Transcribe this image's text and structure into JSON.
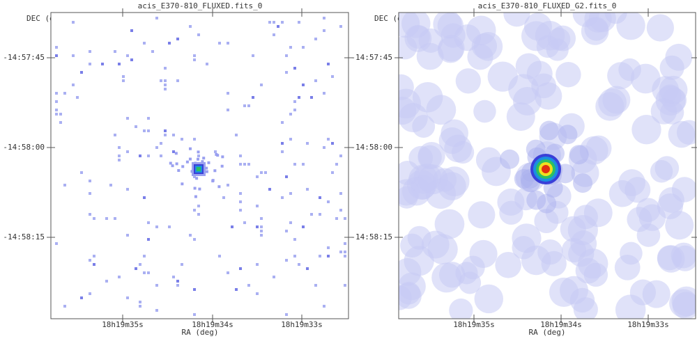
{
  "panels": [
    {
      "title": "acis_E370-810_FLUXED.fits_0",
      "y_label": "DEC (deg)",
      "x_label": "RA (deg)",
      "y_ticks": [
        "-14:57:45",
        "-14:58:00",
        "-14:58:15"
      ],
      "x_ticks": [
        "18h19m35s",
        "18h19m34s",
        "18h19m33s"
      ]
    },
    {
      "title": "acis_E370-810_FLUXED_G2.fits_0",
      "y_label": "DEC (deg)",
      "x_label": "RA (deg)",
      "y_ticks": [
        "-14:57:45",
        "-14:58:00",
        "-14:58:15"
      ],
      "x_ticks": [
        "18h19m35s",
        "18h19m34s",
        "18h19m33s"
      ]
    }
  ]
}
